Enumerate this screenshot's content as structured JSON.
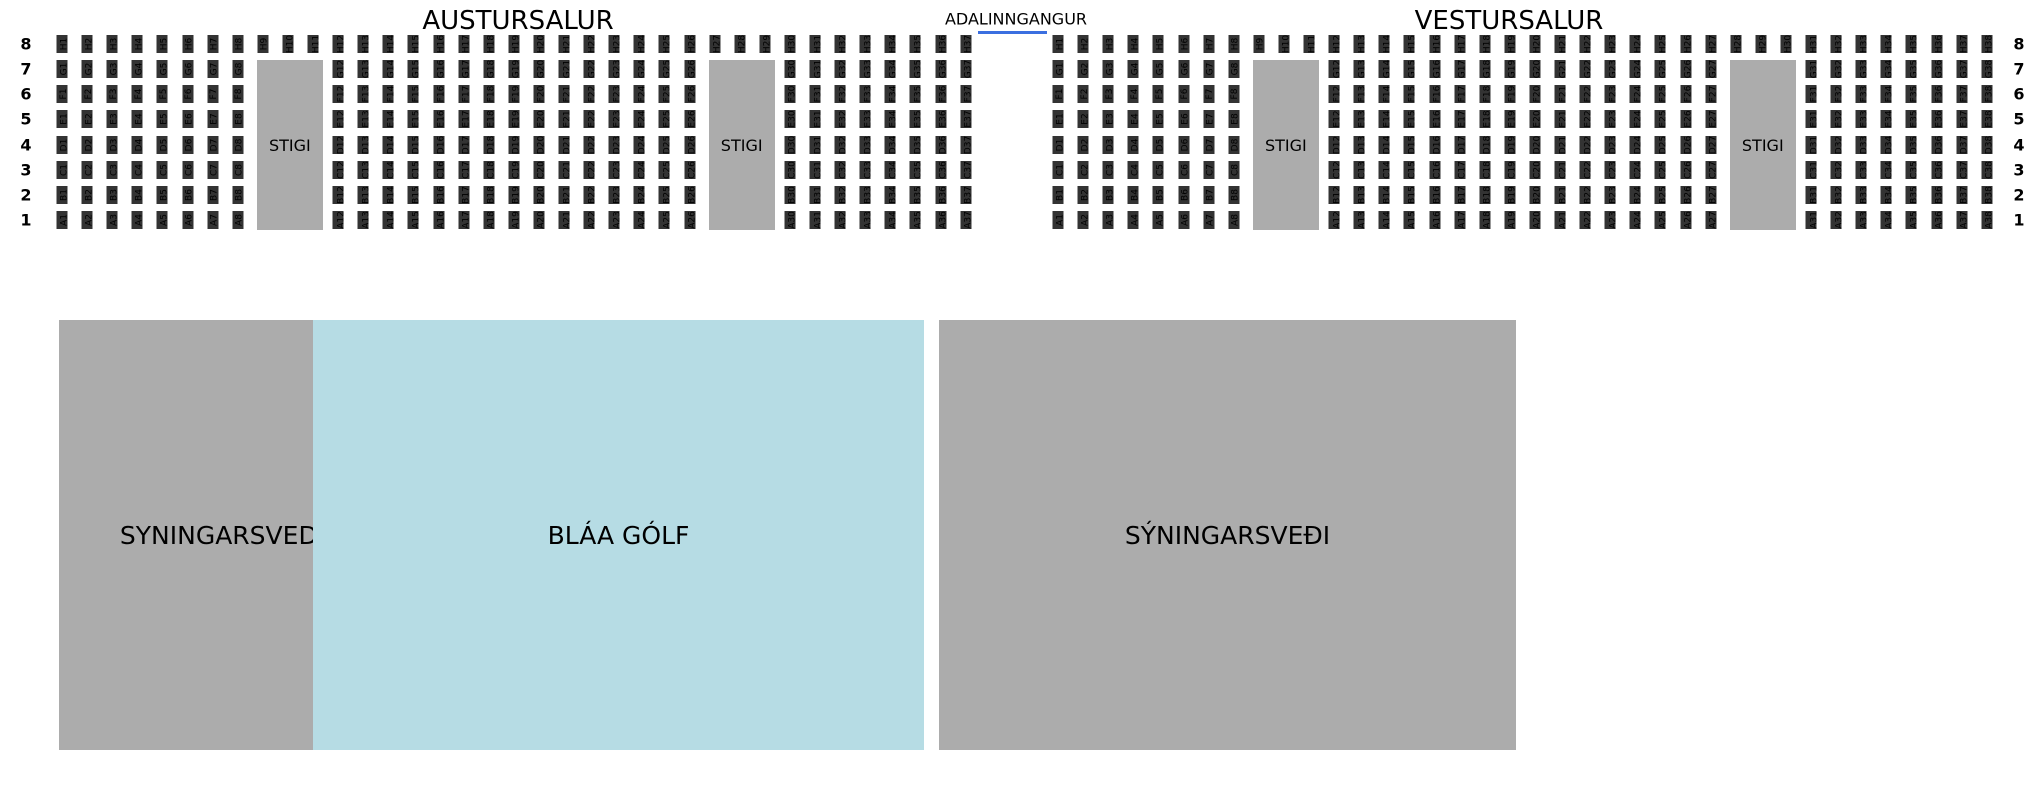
{
  "entrance": {
    "label": "ADALINNGANGUR",
    "color": "#3b6fe0"
  },
  "row_numbers": [
    "8",
    "7",
    "6",
    "5",
    "4",
    "3",
    "2",
    "1"
  ],
  "rows": [
    {
      "number": "8",
      "letter": "H"
    },
    {
      "number": "7",
      "letter": "G"
    },
    {
      "number": "6",
      "letter": "F"
    },
    {
      "number": "5",
      "letter": "E"
    },
    {
      "number": "4",
      "letter": "D"
    },
    {
      "number": "3",
      "letter": "C"
    },
    {
      "number": "2",
      "letter": "B"
    },
    {
      "number": "1",
      "letter": "A"
    }
  ],
  "sections": [
    {
      "title": "AUSTURSALUR",
      "seats_per_row": 37,
      "stairs": [
        {
          "from": 9,
          "to": 11,
          "label": "STIGI"
        },
        {
          "from": 27,
          "to": 29,
          "label": "STIGI"
        }
      ]
    },
    {
      "title": "VESTURSALUR",
      "seats_per_row": 38,
      "stairs": [
        {
          "from": 9,
          "to": 11,
          "label": "STIGI"
        },
        {
          "from": 28,
          "to": 30,
          "label": "STIGI"
        }
      ]
    }
  ],
  "areas": [
    {
      "label": "SYNINGARSVEDI",
      "color": "#acacac"
    },
    {
      "label": "BLÁA GÓLF",
      "color": "#b6dce4"
    },
    {
      "label": "SÝNINGARSVEÐI",
      "color": "#acacac"
    }
  ],
  "colors": {
    "seat": "#333333",
    "stair": "#acacac"
  }
}
